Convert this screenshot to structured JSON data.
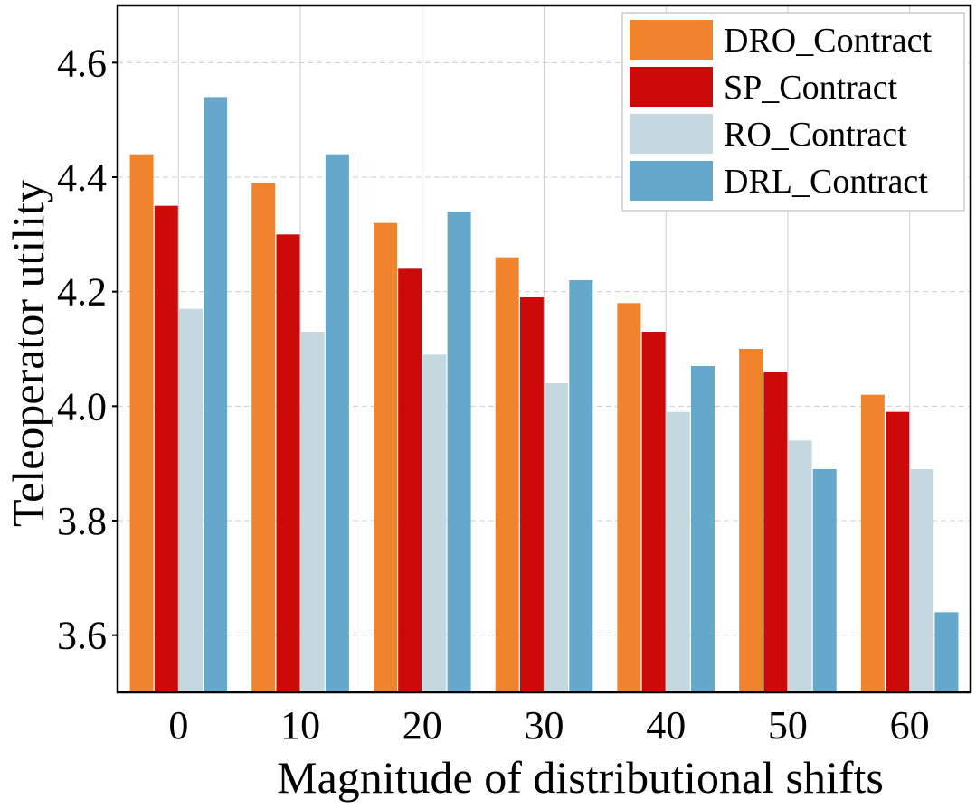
{
  "chart_data": {
    "type": "bar",
    "title": "",
    "xlabel": "Magnitude of distributional shifts",
    "ylabel": "Teleoperator utility",
    "categories": [
      "0",
      "10",
      "20",
      "30",
      "40",
      "50",
      "60"
    ],
    "ylim": [
      3.5,
      4.7
    ],
    "yticks": [
      "3.6",
      "3.8",
      "4.0",
      "4.2",
      "4.4",
      "4.6"
    ],
    "ytick_values": [
      3.6,
      3.8,
      4.0,
      4.2,
      4.4,
      4.6
    ],
    "grid": true,
    "legend_position": "top-right",
    "series": [
      {
        "name": "DRO_Contract",
        "color": "#f0842c",
        "values": [
          4.44,
          4.39,
          4.32,
          4.26,
          4.18,
          4.1,
          4.02
        ]
      },
      {
        "name": "SP_Contract",
        "color": "#cc0a0a",
        "values": [
          4.35,
          4.3,
          4.24,
          4.19,
          4.13,
          4.06,
          3.99
        ]
      },
      {
        "name": "RO_Contract",
        "color": "#c5d8df",
        "values": [
          4.17,
          4.13,
          4.09,
          4.04,
          3.99,
          3.94,
          3.89
        ]
      },
      {
        "name": "DRL_Contract",
        "color": "#66a8cc",
        "values": [
          4.54,
          4.44,
          4.34,
          4.22,
          4.07,
          3.89,
          3.64
        ]
      }
    ]
  }
}
